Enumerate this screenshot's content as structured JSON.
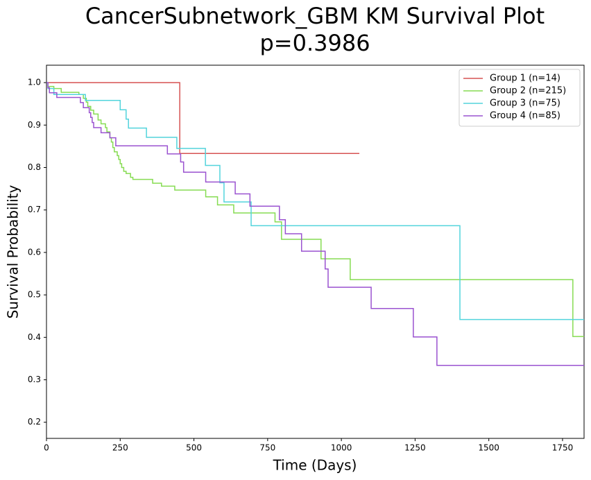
{
  "chart_data": {
    "type": "step",
    "title": "CancerSubnetwork_GBM KM Survival Plot",
    "subtitle": "p=0.3986",
    "x_label": "Time (Days)",
    "y_label": "Survival Probability",
    "xlim": [
      0,
      1823
    ],
    "ylim": [
      0.162,
      1.041
    ],
    "xticks": [
      0,
      250,
      500,
      750,
      1000,
      1250,
      1500,
      1750
    ],
    "yticks": [
      0.2,
      0.3,
      0.4,
      0.5,
      0.6,
      0.7,
      0.8,
      0.9,
      {
        "value": 1,
        "label": "1.0"
      }
    ],
    "grid": false,
    "legend": "upper right",
    "series": [
      {
        "name": "Group 1 (n=14)",
        "color": "#d65252",
        "x": [
          0,
          452,
          1061
        ],
        "values": [
          1,
          0.833,
          0.833
        ]
      },
      {
        "name": "Group 2 (n=215)",
        "color": "#86dc52",
        "x": [
          0,
          5,
          25,
          50,
          110,
          125,
          135,
          140,
          150,
          160,
          175,
          185,
          200,
          205,
          215,
          220,
          225,
          230,
          240,
          245,
          250,
          255,
          262,
          270,
          285,
          293,
          360,
          390,
          435,
          540,
          580,
          635,
          775,
          797,
          931,
          1030,
          1785,
          1823
        ],
        "values": [
          1,
          0.991,
          0.986,
          0.977,
          0.972,
          0.963,
          0.954,
          0.944,
          0.935,
          0.926,
          0.912,
          0.903,
          0.894,
          0.884,
          0.87,
          0.86,
          0.847,
          0.837,
          0.828,
          0.819,
          0.809,
          0.8,
          0.791,
          0.786,
          0.777,
          0.772,
          0.763,
          0.756,
          0.747,
          0.731,
          0.712,
          0.693,
          0.672,
          0.631,
          0.585,
          0.536,
          0.402,
          0.402
        ]
      },
      {
        "name": "Group 3 (n=75)",
        "color": "#52d4dc",
        "x": [
          0,
          5,
          25,
          132,
          250,
          270,
          278,
          339,
          442,
          539,
          588,
          602,
          694,
          1402,
          1823
        ],
        "values": [
          1,
          0.986,
          0.972,
          0.958,
          0.936,
          0.914,
          0.893,
          0.871,
          0.845,
          0.805,
          0.764,
          0.719,
          0.663,
          0.442,
          0.442
        ]
      },
      {
        "name": "Group 4 (n=85)",
        "color": "#9a52d0",
        "x": [
          0,
          5,
          10,
          35,
          115,
          125,
          145,
          150,
          155,
          160,
          185,
          215,
          235,
          410,
          455,
          465,
          540,
          640,
          690,
          790,
          810,
          865,
          945,
          955,
          1101,
          1244,
          1324,
          1823
        ],
        "values": [
          1,
          0.988,
          0.976,
          0.965,
          0.953,
          0.941,
          0.929,
          0.918,
          0.906,
          0.894,
          0.882,
          0.87,
          0.851,
          0.832,
          0.813,
          0.789,
          0.766,
          0.738,
          0.709,
          0.677,
          0.644,
          0.603,
          0.561,
          0.518,
          0.468,
          0.401,
          0.334,
          0.334
        ]
      }
    ]
  }
}
